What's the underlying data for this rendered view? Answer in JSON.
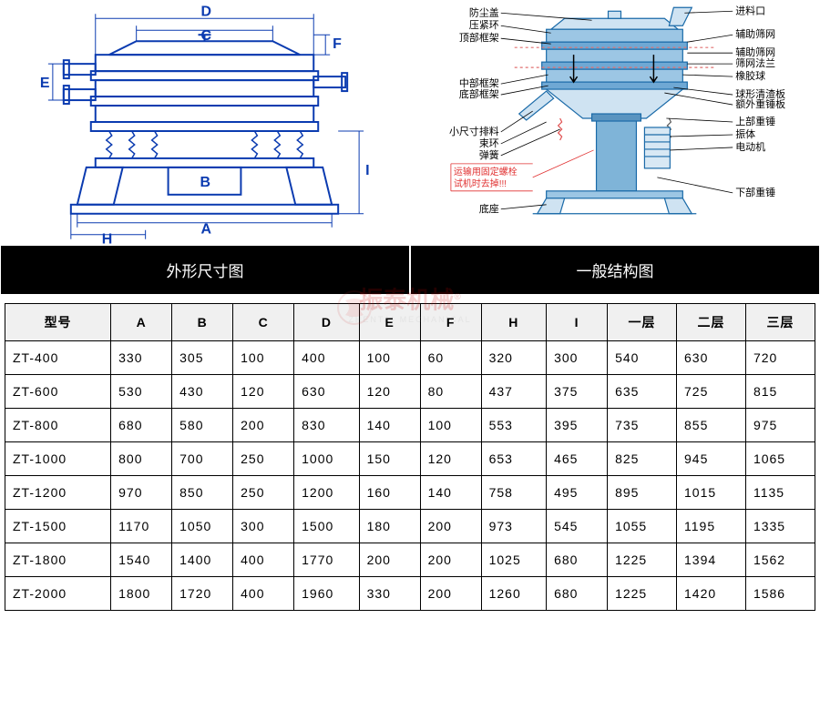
{
  "sections": {
    "left_label": "外形尺寸图",
    "right_label": "一般结构图"
  },
  "left_diagram": {
    "dim_labels": [
      "A",
      "B",
      "C",
      "D",
      "E",
      "F",
      "H",
      "I"
    ],
    "line_color": "#0b3bb0",
    "line_width": 2
  },
  "right_diagram": {
    "labels_left": [
      "防尘盖",
      "压紧环",
      "顶部框架",
      "中部框架",
      "底部框架",
      "小尺寸排料",
      "束环",
      "弹簧",
      "底座"
    ],
    "labels_right": [
      "进料口",
      "辅助筛网",
      "辅助筛网",
      "筛网法兰",
      "橡胶球",
      "球形清渣板",
      "额外重锤板",
      "上部重锤",
      "振体",
      "电动机",
      "下部重锤"
    ],
    "warning_text": [
      "运输用固定螺栓",
      "试机时去掉!!!"
    ],
    "line_color": "#0b7bb0",
    "body_color": "#3a8bc4",
    "warning_color": "#e03030"
  },
  "table": {
    "columns": [
      "型号",
      "A",
      "B",
      "C",
      "D",
      "E",
      "F",
      "H",
      "I",
      "一层",
      "二层",
      "三层"
    ],
    "rows": [
      [
        "ZT-400",
        "330",
        "305",
        "100",
        "400",
        "100",
        "60",
        "320",
        "300",
        "540",
        "630",
        "720"
      ],
      [
        "ZT-600",
        "530",
        "430",
        "120",
        "630",
        "120",
        "80",
        "437",
        "375",
        "635",
        "725",
        "815"
      ],
      [
        "ZT-800",
        "680",
        "580",
        "200",
        "830",
        "140",
        "100",
        "553",
        "395",
        "735",
        "855",
        "975"
      ],
      [
        "ZT-1000",
        "800",
        "700",
        "250",
        "1000",
        "150",
        "120",
        "653",
        "465",
        "825",
        "945",
        "1065"
      ],
      [
        "ZT-1200",
        "970",
        "850",
        "250",
        "1200",
        "160",
        "140",
        "758",
        "495",
        "895",
        "1015",
        "1135"
      ],
      [
        "ZT-1500",
        "1170",
        "1050",
        "300",
        "1500",
        "180",
        "200",
        "973",
        "545",
        "1055",
        "1195",
        "1335"
      ],
      [
        "ZT-1800",
        "1540",
        "1400",
        "400",
        "1770",
        "200",
        "200",
        "1025",
        "680",
        "1225",
        "1394",
        "1562"
      ],
      [
        "ZT-2000",
        "1800",
        "1720",
        "400",
        "1960",
        "330",
        "200",
        "1260",
        "680",
        "1225",
        "1420",
        "1586"
      ]
    ],
    "col_widths_pct": [
      13,
      7.5,
      7.5,
      7.5,
      8,
      7.5,
      7.5,
      8,
      7.5,
      8.5,
      8.5,
      8.5
    ]
  },
  "watermark": {
    "text": "振泰机械",
    "sub": "ZHENTAI MECHANICAL",
    "reg": "®"
  },
  "colors": {
    "header_bg": "#000000",
    "header_fg": "#ffffff",
    "border": "#000000",
    "th_bg": "#f0f0f0"
  }
}
